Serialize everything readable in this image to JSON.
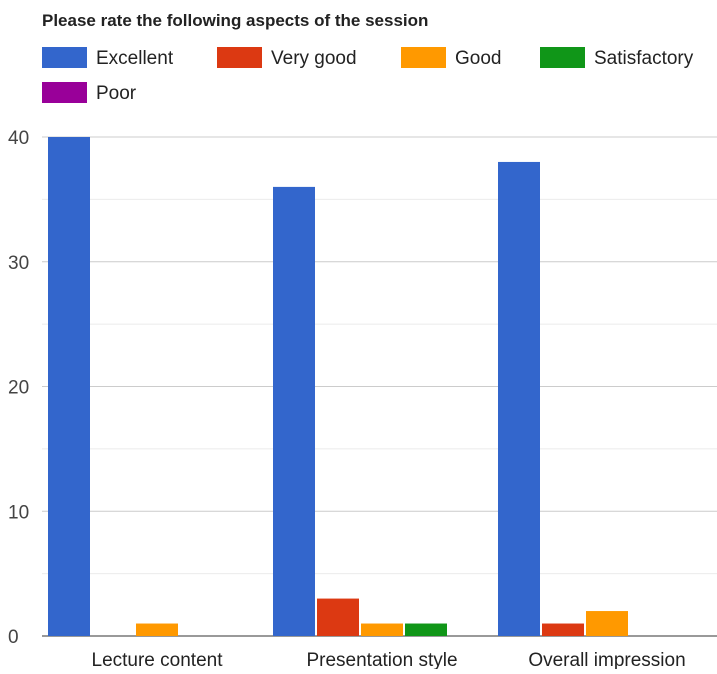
{
  "chart_data": {
    "type": "bar",
    "title": "Please rate the following aspects of the session",
    "xlabel": "",
    "ylabel": "",
    "categories": [
      "Lecture content",
      "Presentation style",
      "Overall impression"
    ],
    "series": [
      {
        "name": "Excellent",
        "color": "#3366cc",
        "values": [
          40,
          36,
          38
        ]
      },
      {
        "name": "Very good",
        "color": "#dc3912",
        "values": [
          0,
          3,
          1
        ]
      },
      {
        "name": "Good",
        "color": "#ff9900",
        "values": [
          1,
          1,
          2
        ]
      },
      {
        "name": "Satisfactory",
        "color": "#109618",
        "values": [
          0,
          1,
          0
        ]
      },
      {
        "name": "Poor",
        "color": "#990099",
        "values": [
          0,
          0,
          0
        ]
      }
    ],
    "ylim": [
      0,
      40
    ],
    "yticks": [
      0,
      10,
      20,
      30,
      40
    ],
    "grid": true,
    "legend_position": "top"
  }
}
